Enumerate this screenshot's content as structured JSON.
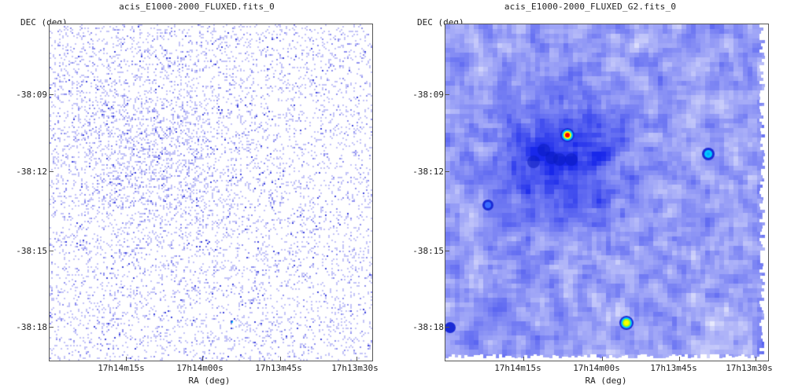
{
  "panels": [
    {
      "title": "acis_E1000-2000_FLUXED.fits_0",
      "ylabel": "DEC (deg)",
      "xlabel": "RA (deg)",
      "yticks": [
        "-38:09",
        "-38:12",
        "-38:15",
        "-38:18"
      ],
      "xticks": [
        "17h14m15s",
        "17h14m00s",
        "17h13m45s",
        "17h13m30s"
      ],
      "style": "sparse-counts"
    },
    {
      "title": "acis_E1000-2000_FLUXED_G2.fits_0",
      "ylabel": "DEC (deg)",
      "xlabel": "RA (deg)",
      "yticks": [
        "-38:09",
        "-38:12",
        "-38:15",
        "-38:18"
      ],
      "xticks": [
        "17h14m15s",
        "17h14m00s",
        "17h13m45s",
        "17h13m30s"
      ],
      "style": "smoothed"
    }
  ],
  "colors": {
    "axis": "#555555",
    "colormap": [
      "#ffffff",
      "#8a8cf5",
      "#1a2bd6",
      "#00c8ff",
      "#ffff00",
      "#ff0000"
    ]
  }
}
